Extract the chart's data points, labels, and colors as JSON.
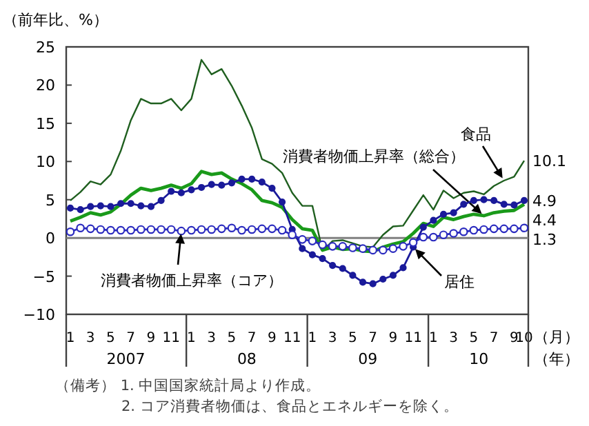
{
  "chart_data": {
    "type": "line",
    "ylabel": "（前年比、%）",
    "xlabel": "（月）",
    "categories": [
      "1",
      null,
      "3",
      null,
      "5",
      null,
      "7",
      null,
      "9",
      null,
      "11",
      null,
      "1",
      null,
      "3",
      null,
      "5",
      null,
      "7",
      null,
      "9",
      null,
      "11",
      null,
      "1",
      null,
      "3",
      null,
      "5",
      null,
      "7",
      null,
      "9",
      null,
      "11",
      null,
      "1",
      null,
      "3",
      null,
      "5",
      null,
      "7",
      null,
      "9",
      "10"
    ],
    "ylim": [
      -10,
      25
    ],
    "yticks": [
      -10,
      -5,
      0,
      5,
      10,
      15,
      20,
      25
    ],
    "grid": false,
    "ref_lines": [
      {
        "axis": "y",
        "value": 0,
        "color": "#808080"
      }
    ],
    "series": [
      {
        "name": "食品",
        "color": "#1f5f1f",
        "marker": "none",
        "values": [
          4.9,
          6.0,
          7.4,
          7.0,
          8.3,
          11.4,
          15.4,
          18.2,
          17.6,
          17.6,
          18.2,
          16.7,
          18.2,
          23.3,
          21.4,
          22.1,
          19.9,
          17.3,
          14.4,
          10.3,
          9.7,
          8.5,
          5.9,
          4.2,
          4.2,
          -1.7,
          -0.4,
          -0.3,
          -0.7,
          -1.1,
          -1.2,
          0.4,
          1.5,
          1.6,
          3.6,
          5.6,
          3.7,
          6.2,
          5.2,
          5.9,
          6.1,
          5.7,
          6.8,
          7.5,
          8.0,
          10.1
        ],
        "value_labels": [
          null,
          null,
          null,
          null,
          null,
          null,
          null,
          null,
          null,
          null,
          null,
          null,
          null,
          null,
          null,
          null,
          null,
          null,
          null,
          null,
          null,
          null,
          null,
          null,
          null,
          null,
          null,
          null,
          null,
          null,
          null,
          null,
          null,
          null,
          null,
          null,
          null,
          null,
          null,
          null,
          null,
          null,
          null,
          null,
          null,
          "10.1"
        ]
      },
      {
        "name": "消費者物価上昇率（総合）",
        "color": "#1a9a1a",
        "marker": "none",
        "values": [
          2.2,
          2.7,
          3.3,
          3.0,
          3.4,
          4.4,
          5.6,
          6.5,
          6.2,
          6.5,
          6.9,
          6.5,
          7.1,
          8.7,
          8.3,
          8.5,
          7.7,
          7.1,
          6.3,
          4.9,
          4.6,
          4.0,
          2.4,
          1.2,
          1.0,
          -1.6,
          -1.2,
          -1.5,
          -1.4,
          -1.7,
          -1.8,
          -1.2,
          -0.8,
          -0.5,
          0.6,
          1.9,
          1.5,
          2.7,
          2.4,
          2.8,
          3.1,
          2.9,
          3.3,
          3.5,
          3.6,
          4.4
        ],
        "value_labels": [
          null,
          null,
          null,
          null,
          null,
          null,
          null,
          null,
          null,
          null,
          null,
          null,
          null,
          null,
          null,
          null,
          null,
          null,
          null,
          null,
          null,
          null,
          null,
          null,
          null,
          null,
          null,
          null,
          null,
          null,
          null,
          null,
          null,
          null,
          null,
          null,
          null,
          null,
          null,
          null,
          null,
          null,
          null,
          null,
          null,
          "4.4"
        ]
      },
      {
        "name": "居住",
        "color": "#1a1a9a",
        "marker": "circle",
        "values": [
          3.9,
          3.7,
          4.1,
          4.2,
          4.1,
          4.5,
          4.5,
          4.2,
          4.1,
          4.9,
          6.1,
          5.9,
          6.3,
          6.6,
          7.0,
          6.9,
          7.2,
          7.7,
          7.7,
          7.3,
          6.5,
          4.7,
          1.1,
          -1.4,
          -2.2,
          -2.7,
          -3.6,
          -4.0,
          -4.9,
          -5.8,
          -6.0,
          -5.4,
          -4.9,
          -3.9,
          -1.2,
          1.4,
          2.3,
          3.1,
          3.3,
          4.4,
          4.9,
          5.0,
          4.9,
          4.4,
          4.3,
          4.9
        ],
        "value_labels": [
          null,
          null,
          null,
          null,
          null,
          null,
          null,
          null,
          null,
          null,
          null,
          null,
          null,
          null,
          null,
          null,
          null,
          null,
          null,
          null,
          null,
          null,
          null,
          null,
          null,
          null,
          null,
          null,
          null,
          null,
          null,
          null,
          null,
          null,
          null,
          null,
          null,
          null,
          null,
          null,
          null,
          null,
          null,
          null,
          null,
          "4.9"
        ]
      },
      {
        "name": "消費者物価上昇率（コア）",
        "color": "#2b2bbf",
        "marker": "circle_open",
        "values": [
          0.8,
          1.3,
          1.2,
          1.1,
          1.0,
          1.0,
          1.0,
          1.1,
          1.1,
          1.1,
          1.1,
          0.9,
          1.0,
          1.1,
          1.1,
          1.2,
          1.3,
          1.0,
          1.1,
          1.2,
          1.2,
          1.0,
          0.4,
          -0.2,
          -0.4,
          -0.9,
          -1.1,
          -1.1,
          -1.3,
          -1.4,
          -1.6,
          -1.6,
          -1.4,
          -1.1,
          -0.6,
          0.1,
          0.1,
          0.4,
          0.6,
          0.8,
          1.0,
          1.1,
          1.2,
          1.2,
          1.2,
          1.3
        ],
        "value_labels": [
          null,
          null,
          null,
          null,
          null,
          null,
          null,
          null,
          null,
          null,
          null,
          null,
          null,
          null,
          null,
          null,
          null,
          null,
          null,
          null,
          null,
          null,
          null,
          null,
          null,
          null,
          null,
          null,
          null,
          null,
          null,
          null,
          null,
          null,
          null,
          null,
          null,
          null,
          null,
          null,
          null,
          null,
          null,
          null,
          null,
          "1.3"
        ]
      }
    ],
    "annotations": [
      "2007",
      "08",
      "09",
      "10",
      "（年）",
      "（備考） 1. 中国国家統計局より作成。",
      "2. コア消費者物価は、食品とエネルギーを除く。"
    ]
  }
}
